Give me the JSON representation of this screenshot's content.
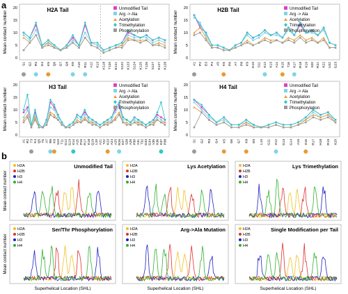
{
  "panel_labels": {
    "a": "a",
    "b": "b"
  },
  "series_colors": {
    "Unmodified Tail": "#e040c8",
    "Arg -> Ala": "#7fd4e6",
    "Acetylation": "#e89a30",
    "Trimethylation": "#30c8c8",
    "Phosphorylation": "#9a9a9a"
  },
  "shl_colors": {
    "H2A": "#f0c020",
    "H2B": "#e03030",
    "H3": "#2020c0",
    "H4": "#30b030"
  },
  "legend_a_h2a": [
    "Unmodified Tail",
    "Arg -> Ala",
    "Acetylation",
    "Trimethylation",
    "Phosphorylation"
  ],
  "legend_a_h2b": [
    "Unmodified Tail",
    "Arg -> Ala",
    "Acetylation",
    "Trimethylation",
    "Phosphorylation"
  ],
  "legend_a_h3": [
    "Unmodified Tail",
    "Arg -> Ala",
    "Acetylation",
    "Trimethylation",
    "Phosphorylation"
  ],
  "legend_a_h4": [
    "Unmodified Tail",
    "Arg -> Ala",
    "Acetylation",
    "Trimethylation",
    "Phosphorylation"
  ],
  "legend_b": [
    "H2A",
    "H2B",
    "H3",
    "H4"
  ],
  "chart_data": [
    {
      "type": "line",
      "title": "H2A Tail",
      "ylabel": "Mean contact number",
      "ylim": [
        0,
        20
      ],
      "yticks": [
        "0",
        "5",
        "10",
        "15",
        "20"
      ],
      "categories": [
        "S1",
        "G2",
        "R3",
        "G4",
        "K5",
        "Q6",
        "G7",
        "G8",
        "K9",
        "A10",
        "R11",
        "A12",
        "K13",
        "K118",
        "T120",
        "E121",
        "S122",
        "K123",
        "S124",
        "K125",
        "T126",
        "S127",
        "K127",
        "K128"
      ],
      "series": [
        {
          "name": "Unmodified Tail",
          "values": [
            10,
            8,
            13,
            5,
            7,
            5,
            3,
            5,
            8,
            5,
            13,
            6,
            5,
            3,
            4,
            5,
            6,
            10,
            9,
            8,
            9,
            7,
            8,
            7
          ]
        },
        {
          "name": "Arg -> Ala",
          "values": [
            9,
            7,
            11,
            5,
            6,
            5,
            3,
            4,
            7,
            5,
            10,
            6,
            5,
            3,
            4,
            5,
            5,
            9,
            8,
            8,
            8,
            6,
            7,
            6
          ]
        },
        {
          "name": "Acetylation",
          "values": [
            8,
            6,
            9,
            4,
            6,
            4,
            3,
            4,
            6,
            4,
            8,
            5,
            4,
            2,
            3,
            4,
            5,
            8,
            7,
            7,
            7,
            5,
            6,
            5
          ]
        },
        {
          "name": "Trimethylation",
          "values": [
            10,
            8,
            14,
            5,
            7,
            5,
            3,
            5,
            9,
            5,
            14,
            6,
            6,
            3,
            4,
            5,
            6,
            11,
            9,
            8,
            9,
            7,
            8,
            7
          ]
        },
        {
          "name": "Phosphorylation",
          "values": [
            3,
            6,
            9,
            4,
            5,
            4,
            3,
            4,
            6,
            4,
            8,
            5,
            4,
            2,
            3,
            4,
            4,
            7,
            7,
            6,
            7,
            5,
            5,
            4
          ]
        }
      ],
      "markers": [
        {
          "category": "S1",
          "color": "#9a9a9a"
        },
        {
          "category": "R3",
          "color": "#7fd4e6"
        },
        {
          "category": "K5",
          "color": "#e89a30"
        },
        {
          "category": "K9",
          "color": "#7fd4e6"
        },
        {
          "category": "R11",
          "color": "#7fd4e6"
        }
      ]
    },
    {
      "type": "line",
      "title": "H2B Tail",
      "ylabel": "Mean contact number",
      "ylim": [
        0,
        20
      ],
      "yticks": [
        "0",
        "5",
        "10",
        "15",
        "20"
      ],
      "categories": [
        "A1",
        "P2",
        "E3",
        "P4",
        "A5",
        "K5",
        "P6",
        "A7",
        "P8",
        "K9",
        "G10",
        "S11",
        "K12",
        "K13",
        "A14",
        "K15",
        "T16",
        "K17",
        "R18",
        "K19",
        "S20",
        "R21",
        "K22",
        "U22",
        "G23"
      ],
      "series": [
        {
          "name": "Unmodified Tail",
          "values": [
            17,
            12,
            10,
            5,
            5,
            4,
            3,
            5,
            6,
            10,
            8,
            9,
            11,
            9,
            10,
            8,
            12,
            9,
            13,
            10,
            11,
            9,
            12,
            6,
            5
          ]
        },
        {
          "name": "Arg -> Ala",
          "values": [
            16,
            14,
            9,
            5,
            5,
            4,
            3,
            5,
            6,
            9,
            7,
            8,
            10,
            9,
            9,
            8,
            11,
            9,
            14,
            10,
            10,
            9,
            11,
            6,
            5
          ]
        },
        {
          "name": "Acetylation",
          "values": [
            10,
            12,
            8,
            4,
            4,
            3,
            3,
            4,
            5,
            7,
            5,
            6,
            8,
            7,
            7,
            6,
            8,
            7,
            9,
            7,
            8,
            6,
            8,
            4,
            4
          ]
        },
        {
          "name": "Trimethylation",
          "values": [
            17,
            13,
            10,
            5,
            5,
            4,
            3,
            5,
            6,
            10,
            8,
            9,
            11,
            9,
            10,
            8,
            12,
            9,
            14,
            10,
            11,
            9,
            12,
            6,
            5
          ]
        },
        {
          "name": "Phosphorylation",
          "values": [
            9,
            10,
            7,
            4,
            4,
            3,
            3,
            4,
            5,
            6,
            5,
            6,
            7,
            6,
            7,
            6,
            7,
            6,
            8,
            6,
            7,
            6,
            7,
            4,
            4
          ]
        }
      ],
      "markers": [
        {
          "category": "A1",
          "color": "#9a9a9a"
        },
        {
          "category": "K5",
          "color": "#e89a30"
        },
        {
          "category": "K12",
          "color": "#7fd4e6"
        },
        {
          "category": "K15",
          "color": "#e89a30"
        },
        {
          "category": "K17",
          "color": "#7fd4e6"
        }
      ]
    },
    {
      "type": "line",
      "title": "H3 Tail",
      "ylabel": "Mean contact number",
      "ylim": [
        0,
        20
      ],
      "yticks": [
        "0",
        "5",
        "10",
        "15",
        "20"
      ],
      "categories": [
        "A1",
        "R2",
        "T3",
        "K4",
        "Q5",
        "T6",
        "A7",
        "R8",
        "K9",
        "S10",
        "T11",
        "G12",
        "G13",
        "K14",
        "A15",
        "P16",
        "R17",
        "K18",
        "Q19",
        "L20",
        "A21",
        "T22",
        "K23",
        "A24",
        "A25",
        "R26",
        "K27",
        "S28",
        "A29",
        "P30",
        "A31",
        "T32",
        "G33",
        "G34",
        "V35",
        "K36",
        "K37",
        "P38"
      ],
      "series": [
        {
          "name": "Unmodified Tail",
          "values": [
            9,
            11,
            4,
            9,
            4,
            3,
            6,
            13,
            11,
            8,
            5,
            3,
            4,
            5,
            8,
            7,
            9,
            7,
            6,
            5,
            4,
            5,
            6,
            7,
            10,
            12,
            7,
            6,
            5,
            7,
            6,
            5,
            4,
            5,
            6,
            8,
            7,
            6
          ]
        },
        {
          "name": "Arg -> Ala",
          "values": [
            7,
            10,
            4,
            8,
            4,
            3,
            5,
            11,
            10,
            7,
            5,
            3,
            4,
            5,
            7,
            6,
            8,
            6,
            5,
            5,
            4,
            5,
            5,
            6,
            9,
            11,
            6,
            6,
            5,
            6,
            5,
            5,
            4,
            5,
            5,
            7,
            6,
            5
          ]
        },
        {
          "name": "Acetylation",
          "values": [
            6,
            8,
            3,
            7,
            3,
            3,
            4,
            9,
            8,
            6,
            4,
            3,
            3,
            4,
            6,
            5,
            7,
            5,
            5,
            4,
            3,
            4,
            5,
            5,
            7,
            9,
            5,
            5,
            4,
            5,
            5,
            4,
            3,
            4,
            5,
            6,
            5,
            5
          ]
        },
        {
          "name": "Trimethylation",
          "values": [
            10,
            16,
            4,
            10,
            4,
            3,
            6,
            14,
            12,
            8,
            5,
            3,
            4,
            5,
            8,
            7,
            10,
            7,
            6,
            5,
            4,
            5,
            6,
            7,
            11,
            13,
            7,
            6,
            5,
            7,
            6,
            5,
            4,
            5,
            6,
            9,
            13,
            6
          ]
        },
        {
          "name": "Phosphorylation",
          "values": [
            5,
            7,
            3,
            6,
            3,
            3,
            4,
            8,
            7,
            6,
            4,
            3,
            3,
            4,
            5,
            5,
            6,
            5,
            4,
            4,
            3,
            4,
            4,
            5,
            6,
            8,
            5,
            4,
            4,
            5,
            4,
            4,
            3,
            4,
            4,
            6,
            5,
            4
          ]
        }
      ],
      "markers": [
        {
          "category": "T3",
          "color": "#9a9a9a"
        },
        {
          "category": "R8",
          "color": "#7fd4e6"
        },
        {
          "category": "K9",
          "color": "#e89a30"
        },
        {
          "category": "K14",
          "color": "#30c8c8"
        },
        {
          "category": "K23",
          "color": "#e89a30"
        },
        {
          "category": "R26",
          "color": "#7fd4e6"
        },
        {
          "category": "K37",
          "color": "#30c8c8"
        }
      ]
    },
    {
      "type": "line",
      "title": "H4 Tail",
      "ylabel": "Mean contact number",
      "ylim": [
        0,
        20
      ],
      "yticks": [
        "0",
        "5",
        "10",
        "15",
        "20"
      ],
      "categories": [
        "S1",
        "G2",
        "R3",
        "G4",
        "K5",
        "G6",
        "G7",
        "K8",
        "G9",
        "L10",
        "G11",
        "K12",
        "G13",
        "G14",
        "A15",
        "K16",
        "R17",
        "H18",
        "R19",
        "K20"
      ],
      "series": [
        {
          "name": "Unmodified Tail",
          "values": [
            14,
            11,
            8,
            5,
            7,
            4,
            4,
            6,
            4,
            3,
            4,
            5,
            4,
            4,
            5,
            7,
            10,
            8,
            9,
            6
          ]
        },
        {
          "name": "Arg -> Ala",
          "values": [
            13,
            10,
            7,
            5,
            6,
            4,
            4,
            5,
            4,
            3,
            4,
            5,
            4,
            4,
            5,
            6,
            9,
            7,
            8,
            6
          ]
        },
        {
          "name": "Acetylation",
          "values": [
            11,
            9,
            6,
            4,
            5,
            3,
            3,
            5,
            3,
            3,
            3,
            4,
            3,
            3,
            4,
            6,
            8,
            7,
            8,
            5
          ]
        },
        {
          "name": "Trimethylation",
          "values": [
            14,
            12,
            8,
            5,
            7,
            4,
            4,
            6,
            4,
            3,
            4,
            5,
            4,
            4,
            5,
            7,
            10,
            8,
            9,
            6
          ]
        },
        {
          "name": "Phosphorylation",
          "values": [
            3,
            9,
            6,
            4,
            5,
            3,
            3,
            4,
            3,
            3,
            3,
            4,
            3,
            3,
            4,
            5,
            7,
            6,
            7,
            5
          ]
        }
      ],
      "markers": [
        {
          "category": "S1",
          "color": "#9a9a9a"
        },
        {
          "category": "K5",
          "color": "#e89a30"
        },
        {
          "category": "K8",
          "color": "#e89a30"
        },
        {
          "category": "K12",
          "color": "#7fd4e6"
        },
        {
          "category": "K16",
          "color": "#e89a30"
        }
      ]
    },
    {
      "type": "line",
      "title": "Unmodified Tail",
      "ylabel": "Mean contact number",
      "xlabel": "",
      "seed": 1
    },
    {
      "type": "line",
      "title": "Lys Acetylation",
      "ylabel": "",
      "xlabel": "",
      "seed": 2
    },
    {
      "type": "line",
      "title": "Lys Trimethylation",
      "ylabel": "",
      "xlabel": "",
      "seed": 3
    },
    {
      "type": "line",
      "title": "Ser/Thr Phosphorylation",
      "ylabel": "Mean contact number",
      "xlabel": "Superhelical Location (SHL)",
      "seed": 4
    },
    {
      "type": "line",
      "title": "Arg->Ala Mutation",
      "ylabel": "",
      "xlabel": "Superhelical Location (SHL)",
      "seed": 5
    },
    {
      "type": "line",
      "title": "Single Modification per Tail",
      "ylabel": "",
      "xlabel": "Superhelical Location (SHL)",
      "seed": 6
    }
  ]
}
